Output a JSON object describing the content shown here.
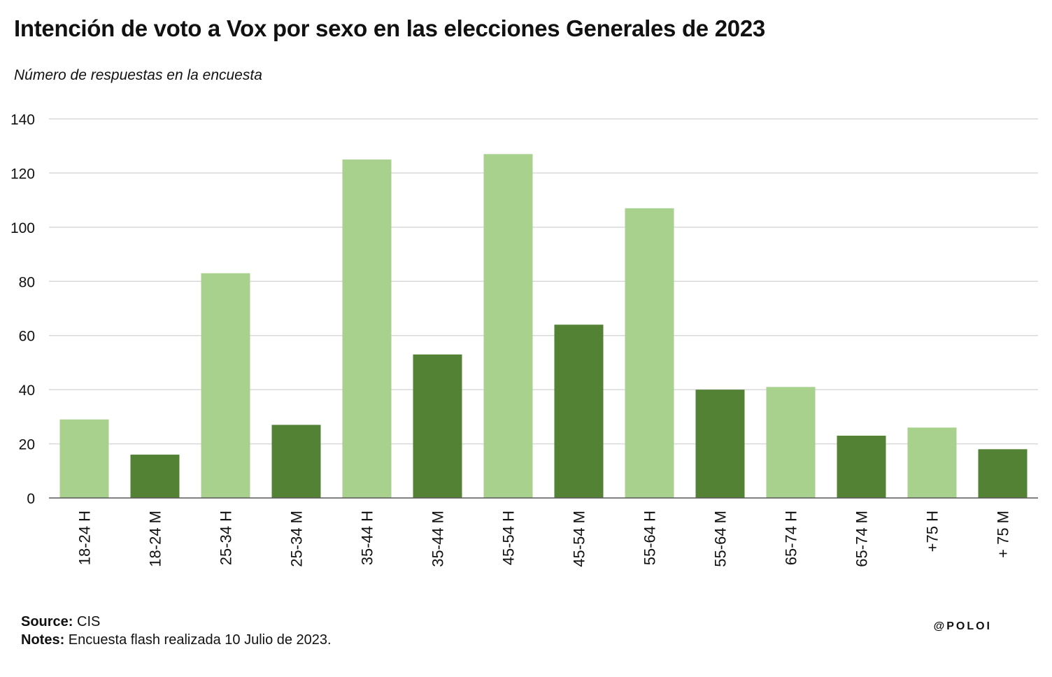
{
  "title": "Intención de voto a Vox por sexo en las elecciones Generales de 2023",
  "subtitle": "Número de respuestas en la encuesta",
  "footer": {
    "source_label": "Source:",
    "source_value": "CIS",
    "notes_label": "Notes:",
    "notes_value": "Encuesta flash realizada 10 Julio de 2023."
  },
  "credit": "@POLOI",
  "colors": {
    "hombres": "#a9d18e",
    "mujeres": "#548235",
    "grid": "#d9d9d9",
    "axis": "#595959"
  },
  "chart_data": {
    "type": "bar",
    "categories": [
      "18-24 H",
      "18-24 M",
      "25-34 H",
      "25-34 M",
      "35-44 H",
      "35-44 M",
      "45-54 H",
      "45-54 M",
      "55-64 H",
      "55-64 M",
      "65-74 H",
      "65-74 M",
      "+75 H",
      "+ 75 M"
    ],
    "values": [
      29,
      16,
      83,
      27,
      125,
      53,
      127,
      64,
      107,
      40,
      41,
      23,
      26,
      18
    ],
    "bar_colors": [
      "#a9d18e",
      "#548235",
      "#a9d18e",
      "#548235",
      "#a9d18e",
      "#548235",
      "#a9d18e",
      "#548235",
      "#a9d18e",
      "#548235",
      "#a9d18e",
      "#548235",
      "#a9d18e",
      "#548235"
    ],
    "ylim": [
      0,
      140
    ],
    "yticks": [
      0,
      20,
      40,
      60,
      80,
      100,
      120,
      140
    ],
    "ytick_labels": [
      "0",
      "20",
      "40",
      "60",
      "80",
      "100",
      "120",
      "140"
    ],
    "grid": true,
    "xlabel": "",
    "ylabel": ""
  }
}
